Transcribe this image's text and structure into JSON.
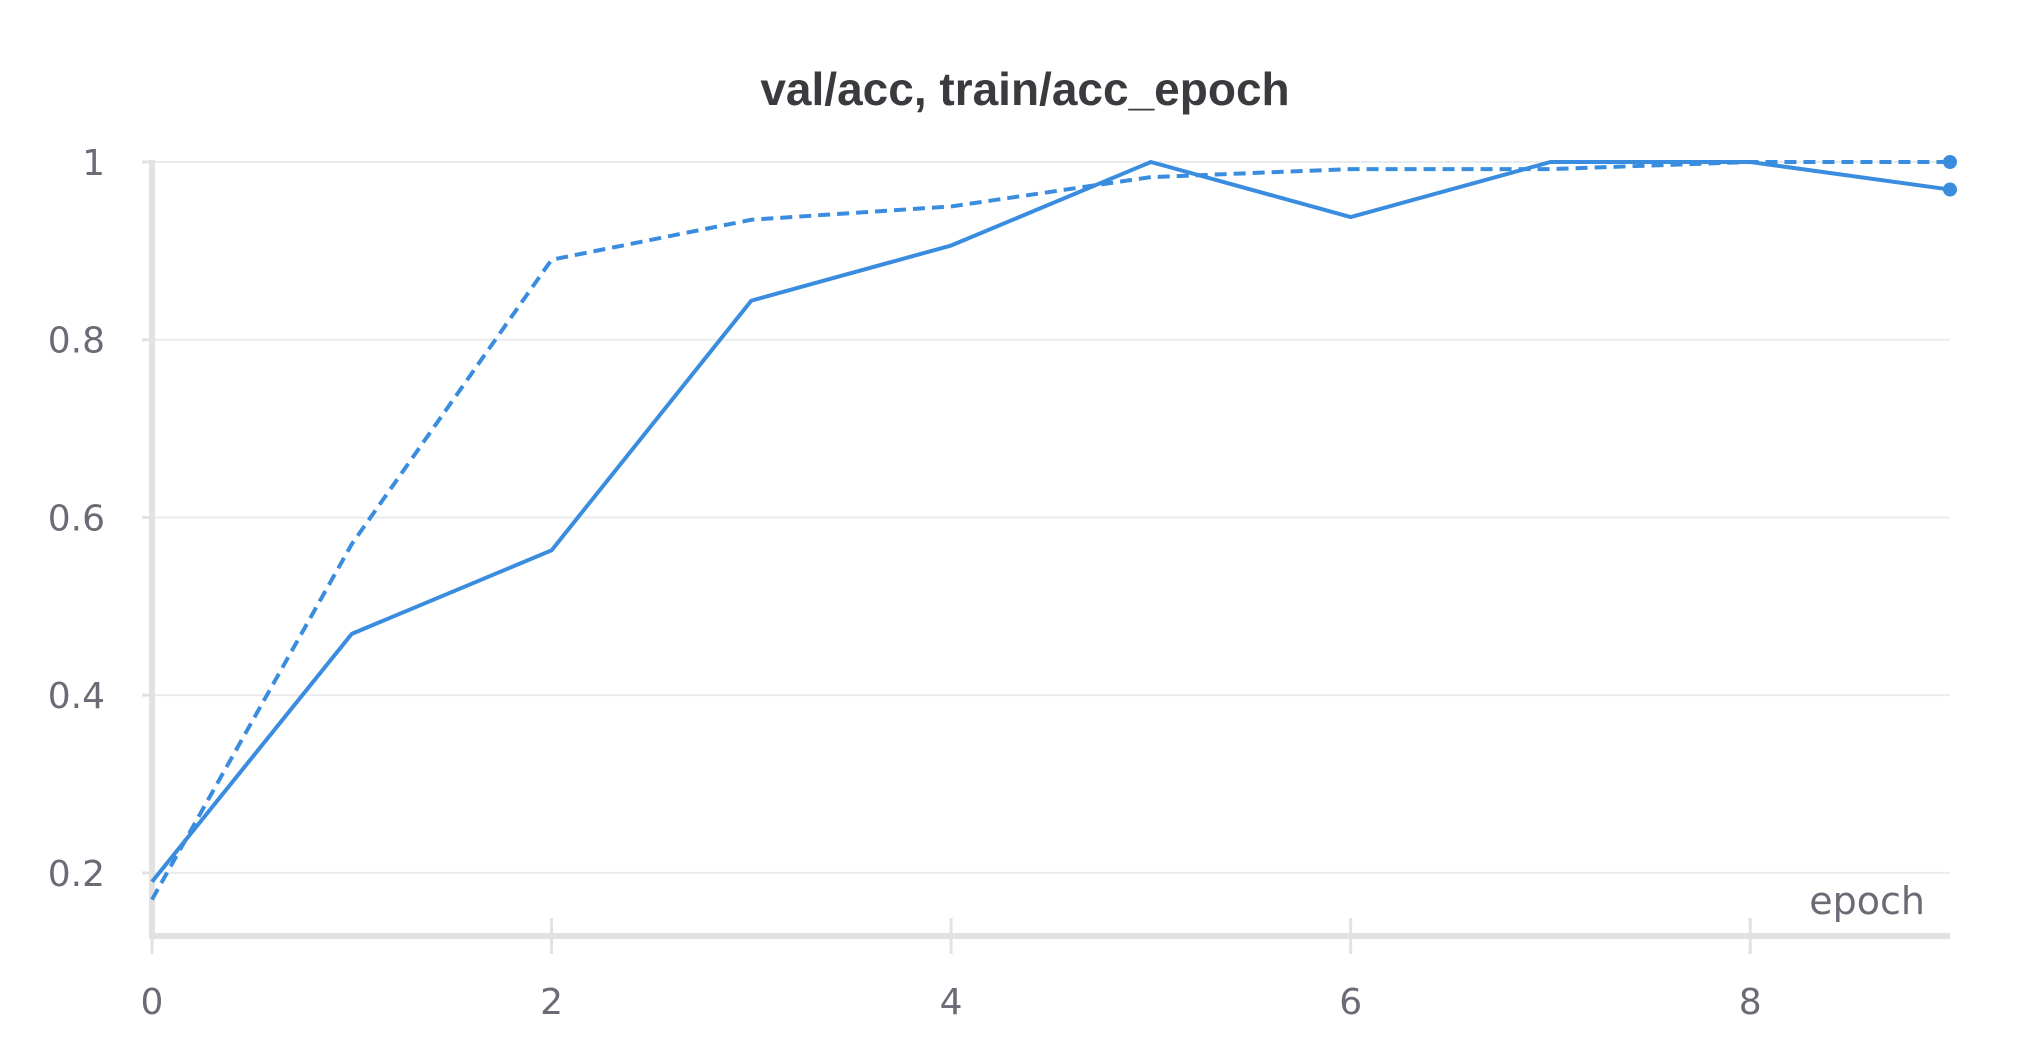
{
  "chart_data": {
    "type": "line",
    "title": "val/acc, train/acc_epoch",
    "xlabel": "epoch",
    "ylabel": "",
    "xlim": [
      0,
      9
    ],
    "ylim": [
      0.165,
      1.0
    ],
    "xticks": [
      0,
      2,
      4,
      6,
      8
    ],
    "yticks": [
      0.2,
      0.4,
      0.6,
      0.8,
      1
    ],
    "grid": true,
    "color": "#3a8dde",
    "series": [
      {
        "style": "solid",
        "x": [
          0,
          1,
          2,
          3,
          4,
          5,
          6,
          7,
          8,
          9
        ],
        "y": [
          0.19,
          0.469,
          0.563,
          0.844,
          0.906,
          1.0,
          0.938,
          1.0,
          1.0,
          0.969
        ]
      },
      {
        "style": "dashed",
        "x": [
          0,
          1,
          2,
          3,
          4,
          5,
          6,
          7,
          8,
          9
        ],
        "y": [
          0.17,
          0.57,
          0.89,
          0.935,
          0.95,
          0.983,
          0.992,
          0.992,
          1.0,
          1.0
        ]
      }
    ]
  }
}
